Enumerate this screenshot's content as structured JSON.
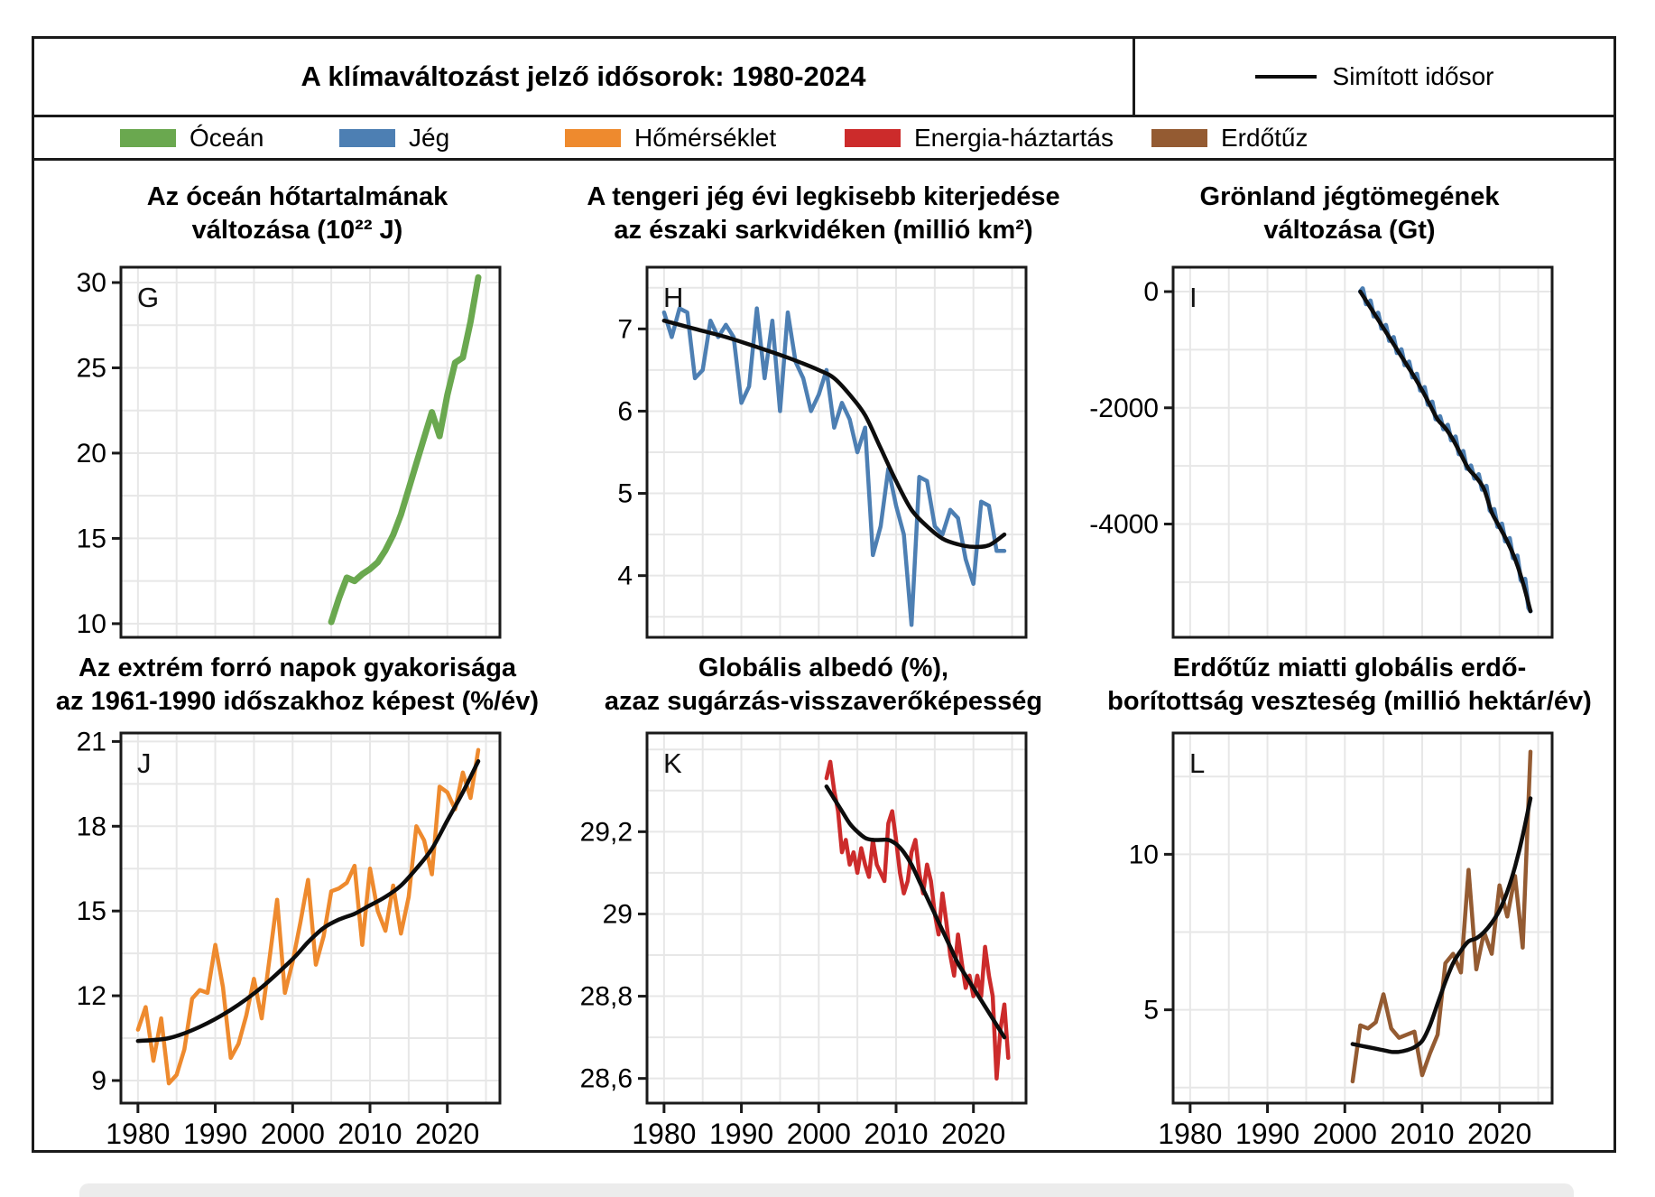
{
  "header": {
    "title": "A klímaváltozást jelző idősorok: 1980-2024",
    "smoothed_legend": "Simított idősor"
  },
  "color_legend": [
    {
      "label": "Óceán",
      "color": "#6aa84f",
      "x": 95
    },
    {
      "label": "Jég",
      "color": "#4d7fb3",
      "x": 338
    },
    {
      "label": "Hőmérséklet",
      "color": "#ee8a2e",
      "x": 588
    },
    {
      "label": "Energia-háztartás",
      "color": "#cc2b2b",
      "x": 898
    },
    {
      "label": "Erdőtűz",
      "color": "#945b32",
      "x": 1238
    }
  ],
  "style": {
    "frame_color": "#1a1a1a",
    "grid_color": "#e7e7e7",
    "smooth_color": "#0d0d0d",
    "background": "#ffffff"
  },
  "chart_data": [
    {
      "letter": "G",
      "type": "line",
      "title_lines": [
        "Az óceán hőtartalmának",
        "változása (10²² J)"
      ],
      "ylabel": "10²² J",
      "xlim": [
        1977.8,
        2026.8
      ],
      "xticks": [
        1980,
        1990,
        2000,
        2010,
        2020
      ],
      "xgrid": [
        1980,
        1985,
        1990,
        1995,
        2000,
        2005,
        2010,
        2015,
        2020,
        2025
      ],
      "show_x_labels": false,
      "ylim": [
        9.2,
        30.9
      ],
      "yticks": {
        "values": [
          10,
          15,
          20,
          25,
          30
        ],
        "labels": [
          "10",
          "15",
          "20",
          "25",
          "30"
        ]
      },
      "ygrid": [
        10,
        12.5,
        15,
        17.5,
        20,
        22.5,
        25,
        27.5,
        30
      ],
      "series": [
        {
          "name": "Óceán",
          "color": "#6aa84f",
          "width": 7,
          "x_start": 2005,
          "x_step": 1,
          "values": [
            10.1,
            11.5,
            12.7,
            12.5,
            12.9,
            13.2,
            13.6,
            14.3,
            15.2,
            16.4,
            17.9,
            19.4,
            20.9,
            22.4,
            21.0,
            23.4,
            25.3,
            25.6,
            27.7,
            30.3
          ]
        }
      ],
      "smooth": null
    },
    {
      "letter": "H",
      "type": "line",
      "title_lines": [
        "A tengeri jég évi legkisebb kiterjedése",
        "az északi sarkvidéken (millió km²)"
      ],
      "ylabel": "millió km²",
      "xlim": [
        1977.8,
        2026.8
      ],
      "xticks": [
        1980,
        1990,
        2000,
        2010,
        2020
      ],
      "xgrid": [
        1980,
        1985,
        1990,
        1995,
        2000,
        2005,
        2010,
        2015,
        2020,
        2025
      ],
      "show_x_labels": false,
      "ylim": [
        3.25,
        7.75
      ],
      "yticks": {
        "values": [
          4,
          5,
          6,
          7
        ],
        "labels": [
          "4",
          "5",
          "6",
          "7"
        ]
      },
      "ygrid": [
        3.5,
        4,
        4.5,
        5,
        5.5,
        6,
        6.5,
        7,
        7.5
      ],
      "series": [
        {
          "name": "Jég",
          "color": "#4d7fb3",
          "width": 4.5,
          "x_start": 1980,
          "x_step": 1,
          "values": [
            7.2,
            6.9,
            7.25,
            7.2,
            6.4,
            6.5,
            7.1,
            6.9,
            7.05,
            6.9,
            6.1,
            6.3,
            7.25,
            6.4,
            7.1,
            6.0,
            7.2,
            6.6,
            6.4,
            6.0,
            6.2,
            6.5,
            5.8,
            6.1,
            5.9,
            5.5,
            5.8,
            4.25,
            4.6,
            5.3,
            4.85,
            4.5,
            3.4,
            5.2,
            5.15,
            4.6,
            4.5,
            4.8,
            4.7,
            4.2,
            3.9,
            4.9,
            4.85,
            4.3,
            4.3
          ]
        }
      ],
      "smooth": {
        "x": [
          1980,
          1984,
          1988,
          1992,
          1996,
          2000,
          2002,
          2004,
          2006,
          2008,
          2010,
          2012,
          2014,
          2016,
          2018,
          2020,
          2022,
          2024
        ],
        "values": [
          7.1,
          7.0,
          6.9,
          6.78,
          6.65,
          6.5,
          6.4,
          6.2,
          5.95,
          5.55,
          5.15,
          4.8,
          4.6,
          4.45,
          4.38,
          4.35,
          4.37,
          4.5
        ]
      }
    },
    {
      "letter": "I",
      "type": "line",
      "title_lines": [
        "Grönland jégtömegének",
        "változása (Gt)"
      ],
      "ylabel": "Gt",
      "xlim": [
        1977.8,
        2026.8
      ],
      "xticks": [
        1980,
        1990,
        2000,
        2010,
        2020
      ],
      "xgrid": [
        1980,
        1985,
        1990,
        1995,
        2000,
        2005,
        2010,
        2015,
        2020,
        2025
      ],
      "show_x_labels": false,
      "ylim": [
        -5950,
        420
      ],
      "yticks": {
        "values": [
          0,
          -2000,
          -4000
        ],
        "labels": [
          "0",
          "-2000",
          "-4000"
        ]
      },
      "ygrid": [
        0,
        -1000,
        -2000,
        -3000,
        -4000,
        -5000
      ],
      "series": [
        {
          "name": "Jég",
          "color": "#4d7fb3",
          "width": 5,
          "x_start": 2002,
          "x_step": 1,
          "wiggle": 90,
          "values": [
            0,
            -210,
            -420,
            -630,
            -840,
            -1050,
            -1260,
            -1470,
            -1700,
            -1950,
            -2200,
            -2350,
            -2550,
            -2800,
            -3050,
            -3200,
            -3400,
            -3800,
            -4050,
            -4300,
            -4600,
            -5000,
            -5500
          ]
        }
      ],
      "smooth": {
        "x": [
          2002,
          2003,
          2004,
          2005,
          2006,
          2007,
          2008,
          2009,
          2010,
          2011,
          2012,
          2013,
          2014,
          2015,
          2016,
          2017,
          2018,
          2019,
          2020,
          2021,
          2022,
          2023,
          2024
        ],
        "values": [
          0,
          -210,
          -420,
          -630,
          -840,
          -1050,
          -1260,
          -1470,
          -1700,
          -1950,
          -2200,
          -2350,
          -2550,
          -2800,
          -3050,
          -3200,
          -3400,
          -3800,
          -4050,
          -4300,
          -4600,
          -5000,
          -5500
        ]
      }
    },
    {
      "letter": "J",
      "type": "line",
      "title_lines": [
        "Az extrém forró napok gyakorisága",
        "az 1961-1990 időszakhoz képest (%/év)"
      ],
      "ylabel": "%/év",
      "xlim": [
        1977.8,
        2026.8
      ],
      "xticks": [
        1980,
        1990,
        2000,
        2010,
        2020
      ],
      "xgrid": [
        1980,
        1985,
        1990,
        1995,
        2000,
        2005,
        2010,
        2015,
        2020,
        2025
      ],
      "show_x_labels": true,
      "ylim": [
        8.2,
        21.3
      ],
      "yticks": {
        "values": [
          9,
          12,
          15,
          18,
          21
        ],
        "labels": [
          "9",
          "12",
          "15",
          "18",
          "21"
        ]
      },
      "ygrid": [
        9,
        10.5,
        12,
        13.5,
        15,
        16.5,
        18,
        19.5,
        21
      ],
      "series": [
        {
          "name": "Hőmérséklet",
          "color": "#ee8a2e",
          "width": 4.5,
          "x_start": 1980,
          "x_step": 1,
          "values": [
            10.8,
            11.6,
            9.7,
            11.2,
            8.9,
            9.2,
            10.1,
            11.9,
            12.2,
            12.1,
            13.8,
            12.3,
            9.8,
            10.3,
            11.3,
            12.6,
            11.2,
            13.3,
            15.4,
            12.1,
            13.2,
            14.6,
            16.1,
            13.1,
            14.1,
            15.7,
            15.8,
            16.0,
            16.6,
            13.8,
            16.5,
            15.0,
            14.3,
            15.9,
            14.2,
            15.5,
            18.0,
            17.5,
            16.3,
            19.4,
            19.2,
            18.6,
            19.9,
            19.0,
            20.7
          ]
        }
      ],
      "smooth": {
        "x": [
          1980,
          1984,
          1988,
          1992,
          1996,
          2000,
          2002,
          2004,
          2006,
          2008,
          2010,
          2012,
          2014,
          2016,
          2018,
          2020,
          2022,
          2024
        ],
        "values": [
          10.4,
          10.5,
          10.9,
          11.5,
          12.3,
          13.3,
          13.9,
          14.4,
          14.7,
          14.9,
          15.2,
          15.5,
          15.9,
          16.5,
          17.2,
          18.2,
          19.2,
          20.3
        ]
      }
    },
    {
      "letter": "K",
      "type": "line",
      "title_lines": [
        "Globális albedó (%),",
        "azaz sugárzás-visszaverőképesség"
      ],
      "ylabel": "%",
      "xlim": [
        1977.8,
        2026.8
      ],
      "xticks": [
        1980,
        1990,
        2000,
        2010,
        2020
      ],
      "xgrid": [
        1980,
        1985,
        1990,
        1995,
        2000,
        2005,
        2010,
        2015,
        2020,
        2025
      ],
      "show_x_labels": true,
      "ylim": [
        28.54,
        29.44
      ],
      "yticks": {
        "values": [
          28.6,
          28.8,
          29.0,
          29.2
        ],
        "labels": [
          "28,6",
          "28,8",
          "29",
          "29,2"
        ]
      },
      "ygrid": [
        28.6,
        28.7,
        28.8,
        28.9,
        29.0,
        29.1,
        29.2,
        29.3,
        29.4
      ],
      "series": [
        {
          "name": "Energia-háztartás",
          "color": "#cc2b2b",
          "width": 4.5,
          "x_start": 2001,
          "x_step": 0.5,
          "values": [
            29.33,
            29.37,
            29.3,
            29.25,
            29.15,
            29.18,
            29.12,
            29.15,
            29.1,
            29.16,
            29.12,
            29.09,
            29.18,
            29.12,
            29.1,
            29.08,
            29.22,
            29.25,
            29.18,
            29.1,
            29.05,
            29.08,
            29.15,
            29.18,
            29.1,
            29.05,
            29.12,
            29.08,
            29.0,
            28.95,
            29.05,
            28.98,
            28.9,
            28.85,
            28.95,
            28.88,
            28.82,
            28.85,
            28.8,
            28.85,
            28.8,
            28.92,
            28.85,
            28.8,
            28.6,
            28.72,
            28.78,
            28.65
          ]
        }
      ],
      "smooth": {
        "x": [
          2001,
          2002,
          2003,
          2004,
          2005,
          2006,
          2007,
          2008,
          2009,
          2010,
          2011,
          2012,
          2013,
          2014,
          2015,
          2016,
          2017,
          2018,
          2019,
          2020,
          2021,
          2022,
          2023,
          2024
        ],
        "values": [
          29.31,
          29.28,
          29.25,
          29.22,
          29.2,
          29.185,
          29.18,
          29.18,
          29.18,
          29.17,
          29.15,
          29.12,
          29.08,
          29.04,
          29.0,
          28.96,
          28.92,
          28.88,
          28.85,
          28.82,
          28.79,
          28.76,
          28.73,
          28.7
        ]
      }
    },
    {
      "letter": "L",
      "type": "line",
      "title_lines": [
        "Erdőtűz miatti globális erdő-",
        "borítottság veszteség (millió hektár/év)"
      ],
      "ylabel": "millió hektár/év",
      "xlim": [
        1977.8,
        2026.8
      ],
      "xticks": [
        1980,
        1990,
        2000,
        2010,
        2020
      ],
      "xgrid": [
        1980,
        1985,
        1990,
        1995,
        2000,
        2005,
        2010,
        2015,
        2020,
        2025
      ],
      "show_x_labels": true,
      "ylim": [
        2.0,
        13.9
      ],
      "yticks": {
        "values": [
          5,
          10
        ],
        "labels": [
          "5",
          "10"
        ]
      },
      "ygrid": [
        2.5,
        5,
        7.5,
        10,
        12.5
      ],
      "series": [
        {
          "name": "Erdőtűz",
          "color": "#945b32",
          "width": 4.5,
          "x_start": 2001,
          "x_step": 1,
          "values": [
            2.7,
            4.5,
            4.4,
            4.6,
            5.5,
            4.4,
            4.1,
            4.2,
            4.3,
            2.9,
            3.6,
            4.2,
            6.5,
            6.8,
            6.2,
            9.5,
            6.3,
            7.5,
            6.8,
            9.0,
            8.0,
            9.3,
            7.0,
            13.3
          ]
        }
      ],
      "smooth": {
        "x": [
          2001,
          2002,
          2003,
          2004,
          2005,
          2006,
          2007,
          2008,
          2009,
          2010,
          2011,
          2012,
          2013,
          2014,
          2015,
          2016,
          2017,
          2018,
          2019,
          2020,
          2021,
          2022,
          2023,
          2024
        ],
        "values": [
          3.9,
          3.85,
          3.8,
          3.75,
          3.7,
          3.65,
          3.65,
          3.7,
          3.8,
          4.0,
          4.5,
          5.2,
          5.9,
          6.5,
          6.9,
          7.2,
          7.3,
          7.5,
          7.8,
          8.2,
          8.8,
          9.6,
          10.6,
          11.8
        ]
      }
    }
  ]
}
